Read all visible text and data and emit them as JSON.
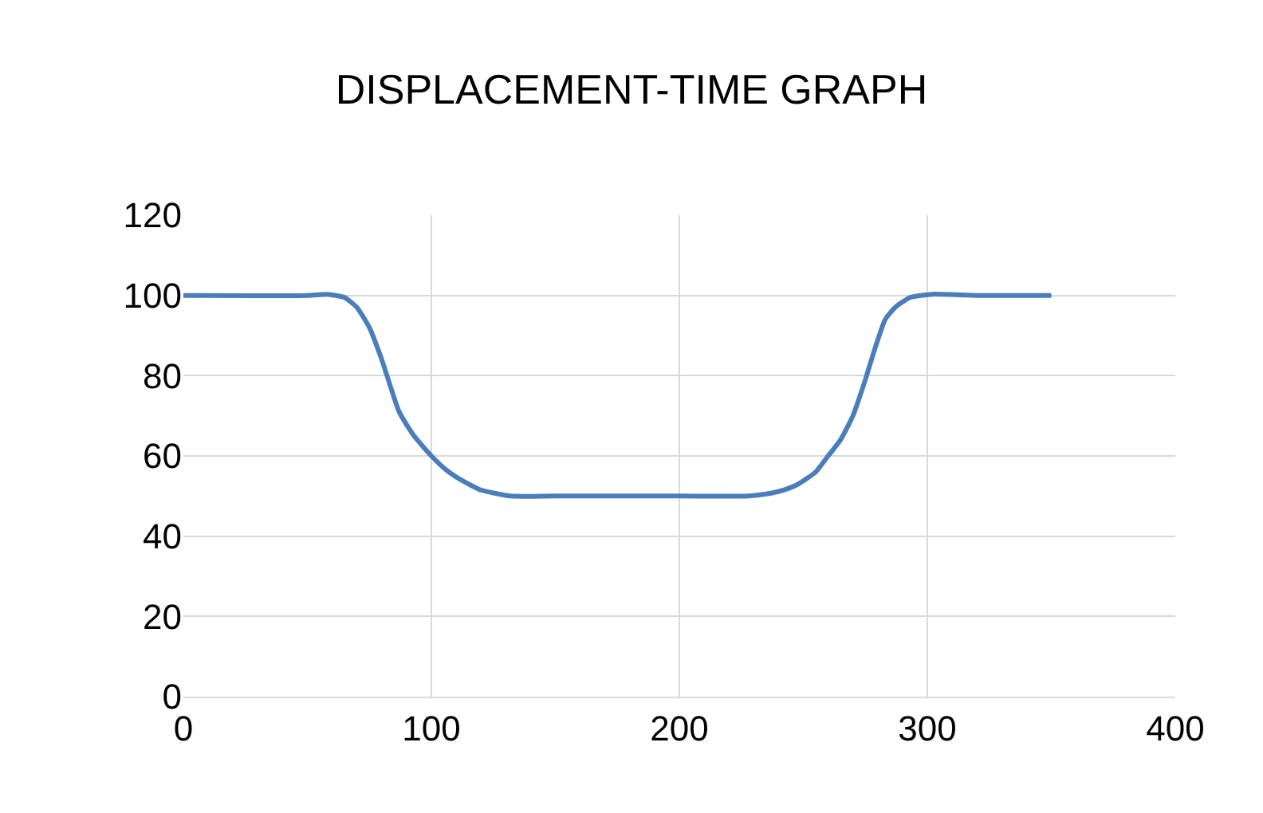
{
  "chart_data": {
    "type": "line",
    "title": "DISPLACEMENT-TIME GRAPH",
    "series": [
      {
        "color": "#4a7ebb",
        "x": [
          0,
          50,
          58,
          65,
          70,
          75,
          80,
          87,
          93,
          100,
          106,
          112,
          120,
          132,
          150,
          200,
          228,
          235,
          242,
          248,
          255,
          260,
          265,
          270,
          275,
          279,
          283,
          287,
          293,
          302,
          320,
          350
        ],
        "values": [
          100,
          100,
          100.3,
          99.5,
          97,
          92,
          84,
          71,
          65,
          60,
          56.5,
          54,
          51.5,
          50,
          50,
          50,
          50,
          50.5,
          51.5,
          53,
          56,
          60,
          64,
          70,
          79,
          87,
          94,
          97,
          99.5,
          100.3,
          100,
          100
        ]
      }
    ],
    "xlim": [
      0,
      400
    ],
    "xticks": [
      0,
      100,
      200,
      300,
      400
    ],
    "ylim": [
      0,
      120
    ],
    "yticks": [
      0,
      20,
      40,
      60,
      80,
      100,
      120
    ],
    "grid": true,
    "marker": "none",
    "line_style": "solid"
  }
}
